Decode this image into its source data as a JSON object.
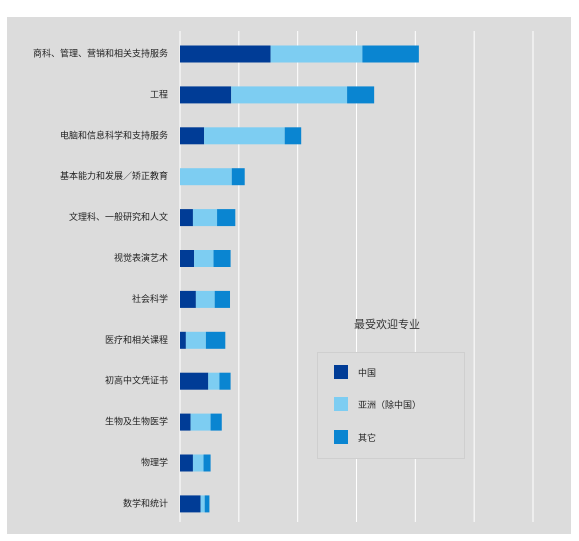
{
  "chart_data": {
    "type": "bar",
    "orientation": "horizontal",
    "stacked": true,
    "title": "最受欢迎专业",
    "categories": [
      "商科、管理、营销和相关支持服务",
      "工程",
      "电脑和信息科学和支持服务",
      "基本能力和发展／矫正教育",
      "文理科、一般研究和人文",
      "视觉表演艺术",
      "社会科学",
      "医疗和相关课程",
      "初高中文凭证书",
      "生物及生物医学",
      "物理学",
      "数学和统计"
    ],
    "series": [
      {
        "name": "中国",
        "color": "#003c96",
        "values": [
          15.4,
          8.7,
          4.1,
          0,
          2.2,
          2.4,
          2.7,
          1.0,
          4.8,
          1.8,
          2.2,
          3.5
        ]
      },
      {
        "name": "亚洲（除中国）",
        "color": "#7dcdf2",
        "values": [
          15.6,
          19.7,
          13.7,
          8.8,
          4.1,
          3.3,
          3.2,
          3.4,
          1.9,
          3.4,
          1.8,
          0.7
        ]
      },
      {
        "name": "其它",
        "color": "#0a85d1",
        "values": [
          9.6,
          4.6,
          2.8,
          2.2,
          3.1,
          2.9,
          2.6,
          3.3,
          1.9,
          1.9,
          1.2,
          0.8
        ]
      }
    ],
    "xlim": [
      0,
      60
    ],
    "xticks": [
      0,
      10,
      20,
      30,
      40,
      50,
      60
    ],
    "xlabel": "",
    "ylabel": "",
    "grid": true,
    "legend_position": "right-middle"
  },
  "colors": {
    "background": "#dcdcdc",
    "gridline": "#ffffff",
    "text": "#222222"
  }
}
